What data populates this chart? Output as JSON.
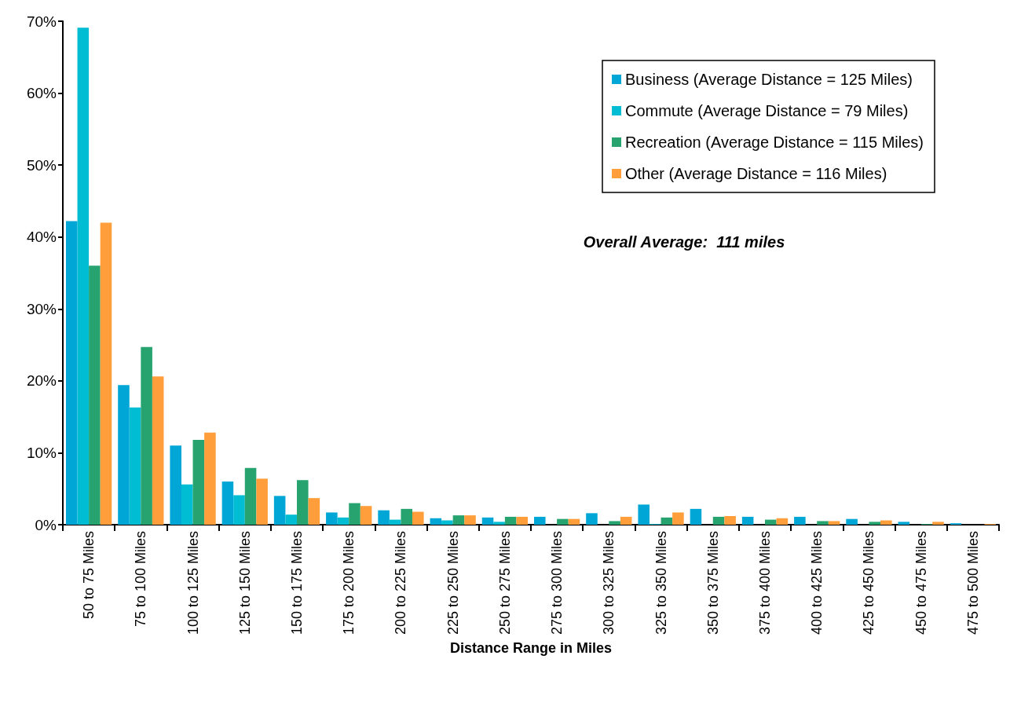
{
  "chart_data": {
    "type": "bar",
    "xlabel": "Distance Range in Miles",
    "categories": [
      "50 to 75 Miles",
      "75 to 100 Miles",
      "100 to 125 Miles",
      "125 to 150 Miles",
      "150 to 175 Miles",
      "175 to 200 Miles",
      "200 to 225 Miles",
      "225 to 250 Miles",
      "250 to 275 Miles",
      "275 to 300 Miles",
      "300 to 325 Miles",
      "325 to 350 Miles",
      "350 to 375 Miles",
      "375 to 400 Miles",
      "400 to 425 Miles",
      "425 to 450 Miles",
      "450 to 475 Miles",
      "475 to 500 Miles"
    ],
    "series": [
      {
        "name": "Business (Average Distance = 125 Miles)",
        "color": "#00a6d6",
        "values": [
          42.2,
          19.4,
          11.0,
          6.0,
          4.0,
          1.7,
          2.0,
          0.9,
          1.0,
          1.1,
          1.6,
          2.8,
          2.2,
          1.1,
          1.1,
          0.8,
          0.4,
          0.2
        ]
      },
      {
        "name": "Commute (Average Distance = 79 Miles)",
        "color": "#00bdd3",
        "values": [
          69.1,
          16.3,
          5.6,
          4.1,
          1.4,
          1.0,
          0.7,
          0.6,
          0.4,
          null,
          null,
          0.1,
          null,
          null,
          null,
          null,
          null,
          null
        ]
      },
      {
        "name": "Recreation (Average Distance = 115 Miles)",
        "color": "#26a36f",
        "values": [
          36.0,
          24.7,
          11.8,
          7.9,
          6.2,
          3.0,
          2.2,
          1.3,
          1.1,
          0.8,
          0.5,
          1.0,
          1.1,
          0.7,
          0.5,
          0.4,
          0.1,
          null
        ]
      },
      {
        "name": "Other (Average Distance = 116 Miles)",
        "color": "#ff9e3a",
        "values": [
          42.0,
          20.6,
          12.8,
          6.4,
          3.7,
          2.6,
          1.8,
          1.3,
          1.1,
          0.8,
          1.1,
          1.7,
          1.2,
          0.9,
          0.5,
          0.6,
          0.4,
          0.1
        ]
      }
    ],
    "ylim": [
      0,
      70
    ],
    "yticks": [
      {
        "value": 0,
        "label": "0%"
      },
      {
        "value": 10,
        "label": "10%"
      },
      {
        "value": 20,
        "label": "20%"
      },
      {
        "value": 30,
        "label": "30%"
      },
      {
        "value": 40,
        "label": "40%"
      },
      {
        "value": 50,
        "label": "50%"
      },
      {
        "value": 60,
        "label": "60%"
      },
      {
        "value": 70,
        "label": "70%"
      }
    ],
    "annotations": [
      "Overall Average:  111 miles"
    ],
    "legend": "top right",
    "grid": false
  }
}
